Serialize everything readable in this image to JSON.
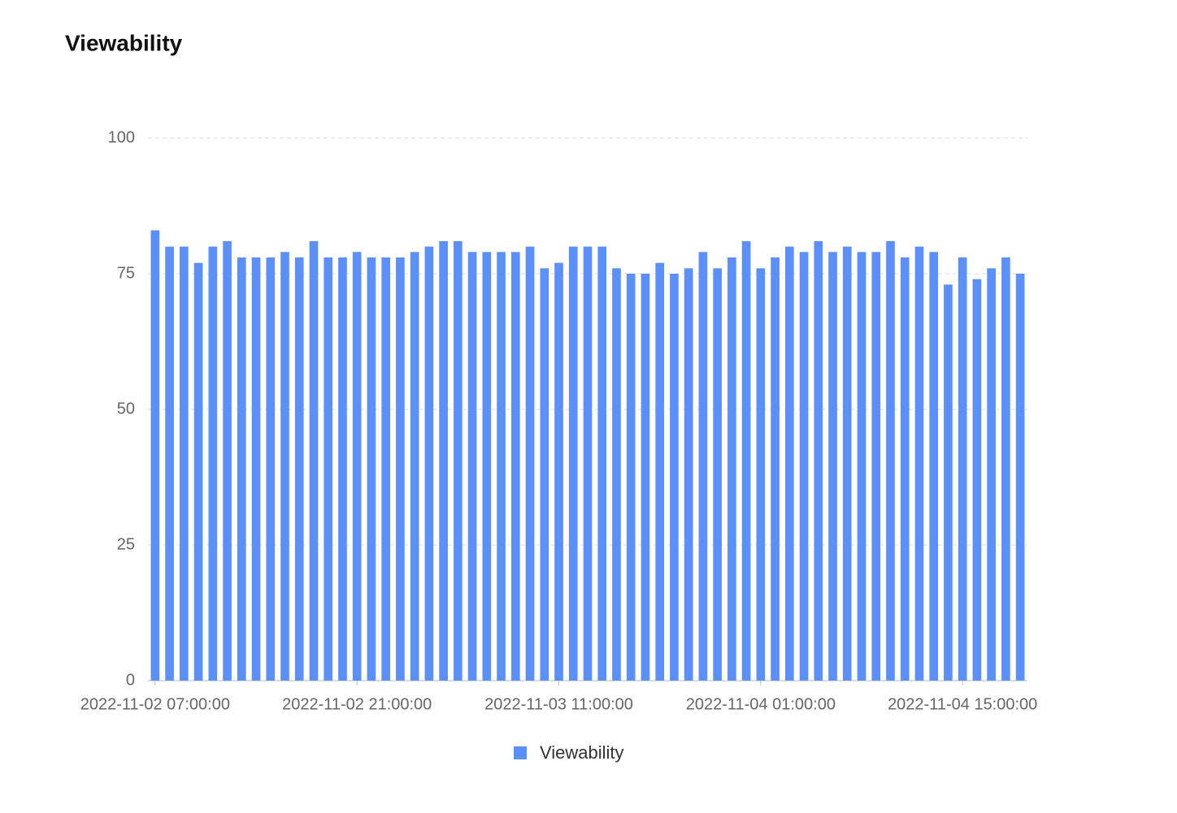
{
  "chart_data": {
    "type": "bar",
    "title": "Viewability",
    "categories": [
      "2022-11-02 07:00:00",
      null,
      null,
      null,
      null,
      null,
      null,
      null,
      null,
      null,
      null,
      null,
      null,
      null,
      "2022-11-02 21:00:00",
      null,
      null,
      null,
      null,
      null,
      null,
      null,
      null,
      null,
      null,
      null,
      null,
      null,
      "2022-11-03 11:00:00",
      null,
      null,
      null,
      null,
      null,
      null,
      null,
      null,
      null,
      null,
      null,
      null,
      null,
      "2022-11-04 01:00:00",
      null,
      null,
      null,
      null,
      null,
      null,
      null,
      null,
      null,
      null,
      null,
      null,
      null,
      "2022-11-04 15:00:00",
      null,
      null,
      null,
      null
    ],
    "series": [
      {
        "name": "Viewability",
        "color": "#5b8ff9",
        "values": [
          83,
          80,
          80,
          77,
          80,
          81,
          78,
          78,
          78,
          79,
          78,
          81,
          78,
          78,
          79,
          78,
          78,
          78,
          79,
          80,
          81,
          81,
          79,
          79,
          79,
          79,
          80,
          76,
          77,
          80,
          80,
          80,
          76,
          75,
          75,
          77,
          75,
          76,
          79,
          76,
          78,
          81,
          76,
          78,
          80,
          79,
          81,
          79,
          80,
          79,
          79,
          81,
          78,
          80,
          79,
          73,
          78,
          74,
          76,
          78,
          75
        ]
      }
    ],
    "ylim": [
      0,
      100
    ],
    "yticks": [
      0,
      25,
      50,
      75,
      100
    ],
    "grid": true,
    "legend": "bottom"
  }
}
